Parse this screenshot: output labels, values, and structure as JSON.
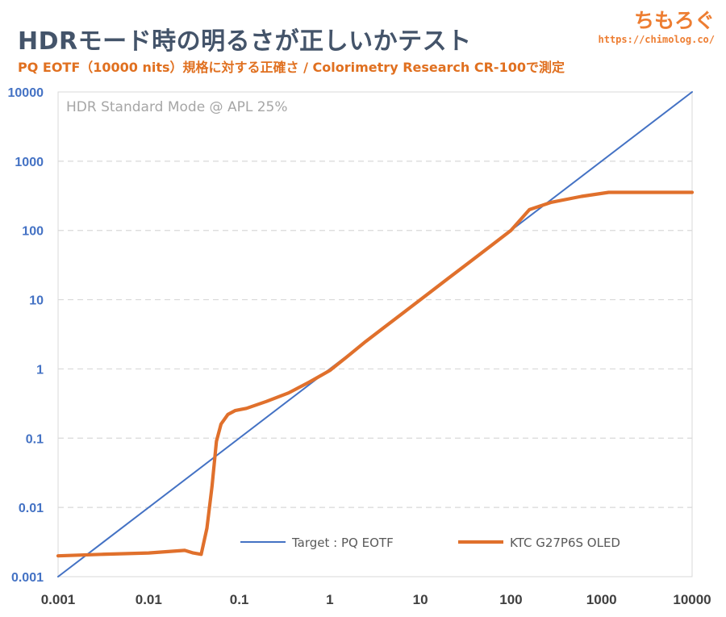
{
  "header": {
    "title": "HDRモード時の明るさが正しいかテスト",
    "subtitle": "PQ EOTF（10000 nits）規格に対する正確さ / Colorimetry Research CR-100で測定",
    "logo_text": "ちもろぐ",
    "logo_url": "https://chimolog.co/"
  },
  "colors": {
    "target": "#4472c4",
    "measured": "#e0702c",
    "grid": "#d9d9d9",
    "title": "#44546a",
    "accent": "#ed7d31"
  },
  "chart_data": {
    "type": "line",
    "annotation": "HDR Standard Mode @ APL 25%",
    "x_scale": "log",
    "y_scale": "log",
    "xlim": [
      0.001,
      10000
    ],
    "ylim": [
      0.001,
      10000
    ],
    "xticks": [
      "0.001",
      "0.01",
      "0.1",
      "1",
      "10",
      "100",
      "1000",
      "10000"
    ],
    "yticks": [
      "0.001",
      "0.01",
      "0.1",
      "1",
      "10",
      "100",
      "1000",
      "10000"
    ],
    "grid": "horizontal dashed",
    "legend_position": "bottom-right",
    "series": [
      {
        "name": "Target : PQ EOTF",
        "color": "#4472c4",
        "x": [
          0.001,
          10000
        ],
        "y": [
          0.001,
          10000
        ]
      },
      {
        "name": "KTC G27P6S OLED",
        "color": "#e0702c",
        "x": [
          0.001,
          0.003,
          0.01,
          0.025,
          0.031,
          0.038,
          0.044,
          0.05,
          0.056,
          0.063,
          0.075,
          0.09,
          0.12,
          0.2,
          0.35,
          0.6,
          1,
          1.5,
          2.5,
          4,
          7,
          12,
          20,
          35,
          60,
          100,
          160,
          280,
          600,
          1200,
          3000,
          10000
        ],
        "y": [
          0.002,
          0.0021,
          0.0022,
          0.0024,
          0.0022,
          0.0021,
          0.005,
          0.02,
          0.09,
          0.16,
          0.22,
          0.25,
          0.27,
          0.34,
          0.45,
          0.65,
          0.95,
          1.45,
          2.5,
          4.0,
          7.0,
          12,
          20,
          35,
          60,
          100,
          200,
          255,
          310,
          355,
          355,
          355
        ]
      }
    ]
  }
}
